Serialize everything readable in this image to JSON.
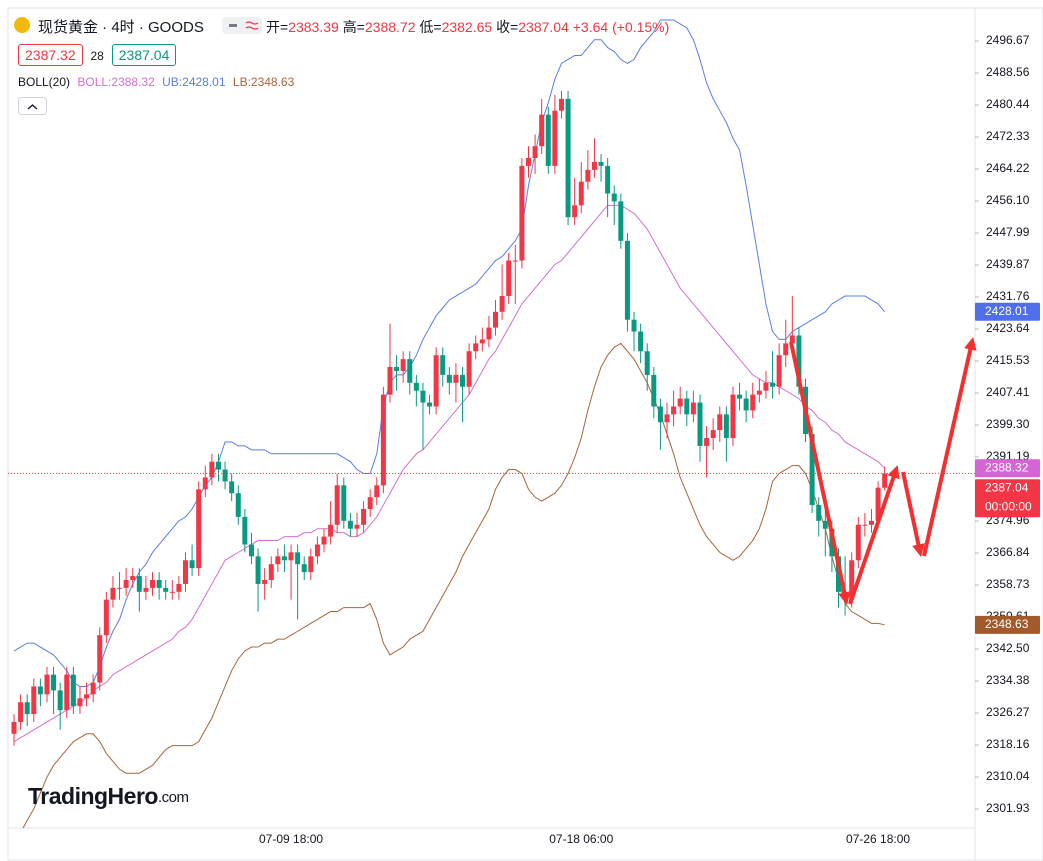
{
  "chart_data": {
    "type": "candlestick",
    "title": "现货黄金 · 4时 · GOODS",
    "ohlc_labels": [
      "开=",
      "高=",
      "低=",
      "收="
    ],
    "change": "+3.64 (+0.15%)",
    "quote": {
      "bid": 2387.32,
      "spread": 28,
      "ask": 2387.04
    },
    "indicator": "BOLL(20)",
    "countdown": "00:00:00",
    "watermark": [
      "TradingHero",
      ".com"
    ],
    "up_color": "#f23645",
    "down_color": "#089981",
    "ylim": [
      2297.11,
      2505.04
    ],
    "yticks": [
      2496.67,
      2488.56,
      2480.44,
      2472.33,
      2464.22,
      {
        "value": 2456.1,
        "label": "2456.10"
      },
      2447.99,
      2439.87,
      2431.76,
      2423.64,
      2415.53,
      2407.41,
      {
        "value": 2399.3,
        "label": "2399.30"
      },
      2391.19,
      2374.96,
      2366.84,
      2358.73,
      2350.61,
      {
        "value": 2342.5,
        "label": "2342.50"
      },
      2334.38,
      2326.27,
      2318.16,
      2310.04,
      2301.93
    ],
    "grid": false,
    "categories": [
      null,
      null,
      null,
      null,
      null,
      null,
      null,
      null,
      null,
      null,
      null,
      null,
      null,
      null,
      null,
      null,
      null,
      null,
      null,
      null,
      null,
      null,
      null,
      null,
      null,
      null,
      null,
      null,
      null,
      null,
      null,
      null,
      null,
      null,
      null,
      null,
      null,
      null,
      null,
      null,
      null,
      null,
      "07-09 18:00",
      null,
      null,
      null,
      null,
      null,
      null,
      null,
      null,
      null,
      null,
      null,
      null,
      null,
      null,
      null,
      null,
      null,
      null,
      null,
      null,
      null,
      null,
      null,
      null,
      null,
      null,
      null,
      null,
      null,
      null,
      null,
      null,
      null,
      null,
      null,
      null,
      null,
      null,
      null,
      null,
      null,
      null,
      null,
      "07-18 06:00",
      null,
      null,
      null,
      null,
      null,
      null,
      null,
      null,
      null,
      null,
      null,
      null,
      null,
      null,
      null,
      null,
      null,
      null,
      null,
      null,
      null,
      null,
      null,
      null,
      null,
      null,
      null,
      null,
      null,
      null,
      null,
      null,
      null,
      null,
      null,
      null,
      null,
      null,
      null,
      null,
      null,
      null,
      null,
      null,
      "07-26 18:00",
      null
    ],
    "open": [
      2321,
      2324,
      2329,
      2326,
      2333,
      2331,
      2336,
      2332,
      2327,
      2336,
      2328,
      2330,
      2331,
      2334,
      2346,
      2355,
      2358,
      2358,
      2360,
      2361,
      2357,
      2358,
      2360,
      2358,
      2357,
      2357,
      2359,
      2365,
      2363,
      2383,
      2386,
      2390,
      2388,
      2385,
      2382,
      2376,
      2369,
      2366,
      2359,
      2360,
      2364,
      2366,
      2365,
      2367,
      2364,
      2362,
      2366,
      2369,
      2371,
      2374,
      2384,
      2375,
      2373,
      2374,
      2378,
      2381,
      2384,
      2407,
      2414,
      2413,
      2416,
      2410,
      2408,
      2405,
      2404,
      2417,
      2412,
      2410,
      2412,
      2409,
      2418,
      2420,
      2421,
      2424,
      2428,
      2432,
      2441,
      2441,
      2465,
      2467,
      2470,
      2478,
      2465,
      2479,
      2482,
      2452,
      2455,
      2461,
      2464,
      2466,
      2465,
      2458,
      2456,
      2446,
      2426,
      2423,
      2418,
      2412,
      2404,
      2400,
      2402,
      2404,
      2406,
      2402,
      2405,
      2394,
      2396,
      2398,
      2402,
      2396,
      2407,
      2406,
      2403,
      2407,
      2408,
      2410,
      2409,
      2417,
      2420,
      2422,
      2409,
      2397,
      2379,
      2375,
      2373,
      2366,
      2357,
      2355,
      2365,
      2374,
      2374,
      2375,
      2383.39
    ],
    "high": [
      2326,
      2331,
      2331,
      2335,
      2335,
      2338,
      2338,
      2334,
      2338,
      2338,
      2333,
      2334,
      2336,
      2348,
      2357,
      2361,
      2362,
      2363,
      2363,
      2363,
      2361,
      2362,
      2362,
      2360,
      2360,
      2361,
      2367,
      2369,
      2385,
      2389,
      2392,
      2392,
      2390,
      2387,
      2384,
      2378,
      2372,
      2368,
      2363,
      2366,
      2368,
      2369,
      2369,
      2369,
      2366,
      2368,
      2371,
      2373,
      2380,
      2387,
      2386,
      2377,
      2377,
      2380,
      2383,
      2386,
      2409,
      2425,
      2417,
      2418,
      2418,
      2412,
      2410,
      2407,
      2419,
      2419,
      2414,
      2415,
      2414,
      2420,
      2422,
      2424,
      2427,
      2431,
      2440,
      2443,
      2445,
      2467,
      2470,
      2473,
      2482,
      2480,
      2483,
      2484,
      2484,
      2462,
      2466,
      2469,
      2472,
      2468,
      2467,
      2460,
      2458,
      2448,
      2428,
      2425,
      2420,
      2414,
      2406,
      2405,
      2408,
      2409,
      2408,
      2408,
      2407,
      2399,
      2401,
      2404,
      2404,
      2409,
      2410,
      2408,
      2410,
      2411,
      2413,
      2418,
      2420,
      2426,
      2432,
      2424,
      2411,
      2399,
      2381,
      2378,
      2375,
      2368,
      2366,
      2367,
      2376,
      2377,
      2378,
      2385,
      2388.72
    ],
    "low": [
      2318,
      2322,
      2323,
      2324,
      2328,
      2329,
      2326,
      2322,
      2325,
      2326,
      2326,
      2328,
      2329,
      2332,
      2344,
      2353,
      2355,
      2356,
      2358,
      2352,
      2355,
      2356,
      2355,
      2355,
      2355,
      2355,
      2357,
      2361,
      2361,
      2381,
      2384,
      2385,
      2383,
      2380,
      2374,
      2367,
      2364,
      2352,
      2355,
      2358,
      2362,
      2362,
      2355,
      2350,
      2360,
      2360,
      2364,
      2367,
      2369,
      2372,
      2373,
      2371,
      2371,
      2372,
      2376,
      2379,
      2382,
      2405,
      2408,
      2410,
      2407,
      2404,
      2393,
      2402,
      2402,
      2409,
      2407,
      2405,
      2400,
      2407,
      2416,
      2418,
      2419,
      2422,
      2426,
      2430,
      2430,
      2439,
      2462,
      2463,
      2468,
      2463,
      2463,
      2477,
      2450,
      2450,
      2453,
      2459,
      2462,
      2461,
      2452,
      2450,
      2444,
      2423,
      2418,
      2415,
      2408,
      2401,
      2393,
      2396,
      2399,
      2402,
      2399,
      2400,
      2390,
      2386,
      2393,
      2395,
      2390,
      2394,
      2403,
      2400,
      2401,
      2405,
      2406,
      2406,
      2407,
      2414,
      2418,
      2407,
      2395,
      2377,
      2371,
      2366,
      2362,
      2353,
      2351,
      2353,
      2363,
      2371,
      2372,
      2373,
      2382.65
    ],
    "close": [
      2324,
      2329,
      2326,
      2333,
      2331,
      2336,
      2332,
      2327,
      2336,
      2328,
      2330,
      2331,
      2334,
      2346,
      2355,
      2358,
      2358,
      2360,
      2361,
      2357,
      2358,
      2360,
      2358,
      2357,
      2357,
      2359,
      2365,
      2363,
      2383,
      2386,
      2390,
      2388,
      2385,
      2382,
      2376,
      2369,
      2366,
      2359,
      2360,
      2364,
      2366,
      2365,
      2367,
      2364,
      2362,
      2366,
      2369,
      2371,
      2374,
      2384,
      2375,
      2373,
      2374,
      2378,
      2381,
      2384,
      2407,
      2414,
      2413,
      2416,
      2410,
      2408,
      2405,
      2404,
      2417,
      2412,
      2410,
      2412,
      2409,
      2418,
      2420,
      2421,
      2424,
      2428,
      2432,
      2441,
      2441,
      2465,
      2467,
      2470,
      2478,
      2465,
      2479,
      2482,
      2452,
      2455,
      2461,
      2464,
      2466,
      2465,
      2458,
      2456,
      2446,
      2426,
      2423,
      2418,
      2412,
      2404,
      2400,
      2402,
      2404,
      2406,
      2402,
      2405,
      2394,
      2396,
      2398,
      2402,
      2396,
      2407,
      2406,
      2403,
      2407,
      2408,
      2410,
      2409,
      2417,
      2420,
      2422,
      2409,
      2397,
      2379,
      2375,
      2373,
      2366,
      2357,
      2355,
      2365,
      2374,
      2374,
      2375,
      2383.4,
      2387.04
    ],
    "series": [
      {
        "name": "BOLL:",
        "color": "#d56fd0",
        "values": [
          2319,
          2320,
          2321,
          2322,
          2323,
          2324,
          2325,
          2326,
          2327,
          2328,
          2329,
          2330,
          2332,
          2333,
          2334,
          2336,
          2337,
          2338,
          2339,
          2340,
          2341,
          2342,
          2343,
          2344,
          2345,
          2347,
          2348,
          2350,
          2353,
          2356,
          2359,
          2362,
          2365,
          2366,
          2367,
          2368,
          2369,
          2370,
          2370,
          2370,
          2370,
          2371,
          2371,
          2371,
          2372,
          2372,
          2373,
          2373,
          2373,
          2372,
          2372,
          2371,
          2371,
          2372,
          2374,
          2376,
          2379,
          2382,
          2385,
          2388,
          2390,
          2392,
          2393,
          2395,
          2397,
          2399,
          2401,
          2403,
          2405,
          2407,
          2410,
          2413,
          2416,
          2418,
          2421,
          2424,
          2427,
          2430,
          2432,
          2434,
          2436,
          2438,
          2440,
          2441,
          2443,
          2445,
          2447,
          2449,
          2451,
          2453,
          2455,
          2455,
          2455,
          2454,
          2453,
          2451,
          2449,
          2446,
          2443,
          2440,
          2437,
          2434,
          2432,
          2430,
          2428,
          2426,
          2424,
          2422,
          2420,
          2418,
          2416,
          2414,
          2412,
          2411,
          2410,
          2410,
          2409,
          2408,
          2407,
          2406,
          2404,
          2403,
          2401,
          2400,
          2398,
          2397,
          2395,
          2394,
          2393,
          2392,
          2391,
          2390,
          2388.32
        ]
      },
      {
        "name": "UB:",
        "color": "#5b7ee6",
        "values": [
          2342,
          2343,
          2344,
          2344,
          2343,
          2342,
          2341,
          2339,
          2337,
          2334,
          2333,
          2333,
          2334,
          2338,
          2343,
          2347,
          2350,
          2355,
          2359,
          2362,
          2364,
          2367,
          2369,
          2371,
          2373,
          2375,
          2376,
          2378,
          2381,
          2384,
          2386,
          2390,
          2395,
          2395,
          2394,
          2394,
          2393,
          2393,
          2393,
          2392,
          2392,
          2392,
          2392,
          2392,
          2392,
          2392,
          2392,
          2392,
          2392,
          2392,
          2391,
          2390,
          2388,
          2387,
          2387,
          2392,
          2404,
          2410,
          2412,
          2412,
          2414,
          2417,
          2421,
          2424,
          2427,
          2429,
          2431,
          2432,
          2433,
          2434,
          2435,
          2437,
          2439,
          2441,
          2442,
          2444,
          2446,
          2449,
          2460,
          2468,
          2476,
          2481,
          2487,
          2491,
          2492,
          2493,
          2493,
          2495,
          2497,
          2497,
          2495,
          2494,
          2492,
          2491,
          2492,
          2495,
          2497,
          2499,
          2502,
          2502,
          2502,
          2501,
          2500,
          2497,
          2492,
          2486,
          2482,
          2479,
          2476,
          2472,
          2469,
          2460,
          2450,
          2440,
          2430,
          2423,
          2421,
          2421,
          2423,
          2424,
          2425,
          2426,
          2427,
          2428,
          2430,
          2431,
          2432,
          2432,
          2432,
          2432,
          2431,
          2430,
          2428.01
        ]
      },
      {
        "name": "LB:",
        "color": "#a8653a",
        "values": [
          2293,
          2296,
          2299,
          2302,
          2306,
          2310,
          2313,
          2315,
          2317,
          2319,
          2320,
          2321,
          2321,
          2319,
          2316,
          2314,
          2312,
          2311,
          2311,
          2311,
          2312,
          2313,
          2315,
          2317,
          2318,
          2318,
          2318,
          2318,
          2319,
          2322,
          2325,
          2329,
          2333,
          2337,
          2340,
          2342,
          2343,
          2343,
          2344,
          2344,
          2345,
          2345,
          2346,
          2347,
          2348,
          2349,
          2350,
          2351,
          2352,
          2352,
          2353,
          2353,
          2353,
          2353,
          2354,
          2350,
          2344,
          2341,
          2342,
          2343,
          2345,
          2346,
          2347,
          2350,
          2353,
          2356,
          2359,
          2362,
          2366,
          2369,
          2372,
          2375,
          2378,
          2383,
          2386,
          2388,
          2388,
          2387,
          2383,
          2381,
          2380,
          2381,
          2382,
          2384,
          2387,
          2391,
          2396,
          2403,
          2409,
          2414,
          2417,
          2419,
          2420,
          2418,
          2416,
          2413,
          2410,
          2406,
          2402,
          2397,
          2392,
          2386,
          2382,
          2378,
          2374,
          2371,
          2369,
          2367,
          2366,
          2365,
          2366,
          2368,
          2370,
          2373,
          2378,
          2385,
          2387,
          2388,
          2389,
          2389,
          2387,
          2383,
          2378,
          2373,
          2366,
          2360,
          2354,
          2352,
          2351,
          2350,
          2349,
          2349,
          2348.63
        ]
      }
    ]
  }
}
